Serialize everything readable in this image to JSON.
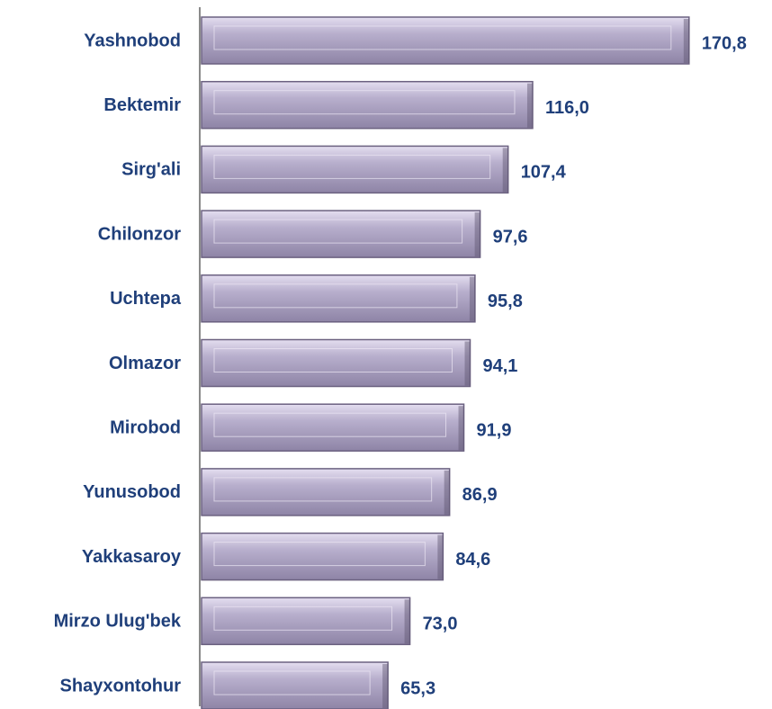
{
  "chart_data": {
    "type": "bar",
    "orientation": "horizontal",
    "categories": [
      "Yashnobod",
      "Bektemir",
      "Sirg'ali",
      "Chilonzor",
      "Uchtepa",
      "Olmazor",
      "Mirobod",
      "Yunusobod",
      "Yakkasaroy",
      "Mirzo Ulug'bek",
      "Shayxontohur"
    ],
    "values": [
      170.8,
      116.0,
      107.4,
      97.6,
      95.8,
      94.1,
      91.9,
      86.9,
      84.6,
      73.0,
      65.3
    ],
    "value_labels": [
      "170,8",
      "116,0",
      "107,4",
      "97,6",
      "95,8",
      "94,1",
      "91,9",
      "86,9",
      "84,6",
      "73,0",
      "65,3"
    ],
    "color": "#b0a6c6",
    "xlim": [
      0,
      180
    ]
  }
}
